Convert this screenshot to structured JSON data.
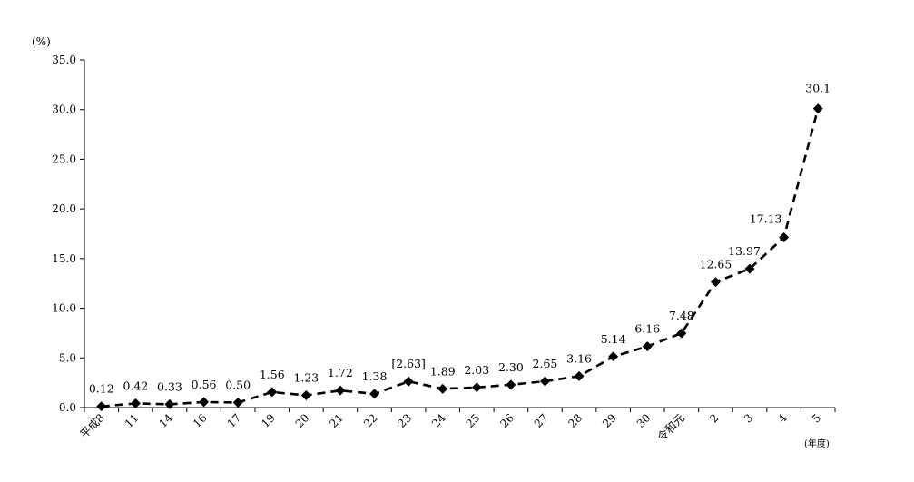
{
  "chart_data": {
    "type": "line",
    "y_unit": "(%)",
    "x_unit": "(年度)",
    "ylim": [
      0,
      35
    ],
    "y_ticks": [
      "0.0",
      "5.0",
      "10.0",
      "15.0",
      "20.0",
      "25.0",
      "30.0",
      "35.0"
    ],
    "categories": [
      "平成8",
      "11",
      "14",
      "16",
      "17",
      "19",
      "20",
      "21",
      "22",
      "23",
      "24",
      "25",
      "26",
      "27",
      "28",
      "29",
      "30",
      "令和元",
      "2",
      "3",
      "4",
      "5"
    ],
    "values": [
      0.12,
      0.42,
      0.33,
      0.56,
      0.5,
      1.56,
      1.23,
      1.72,
      1.38,
      2.63,
      1.89,
      2.03,
      2.3,
      2.65,
      3.16,
      5.14,
      6.16,
      7.48,
      12.65,
      13.97,
      17.13,
      30.1
    ],
    "data_labels": [
      "0.12",
      "0.42",
      "0.33",
      "0.56",
      "0.50",
      "1.56",
      "1.23",
      "1.72",
      "1.38",
      "[2.63]",
      "1.89",
      "2.03",
      "2.30",
      "2.65",
      "3.16",
      "5.14",
      "6.16",
      "7.48",
      "12.65",
      "13.97",
      "17.13",
      "30.1"
    ],
    "line_style": "dashed",
    "marker": "diamond",
    "grid": false,
    "legend": "none"
  }
}
